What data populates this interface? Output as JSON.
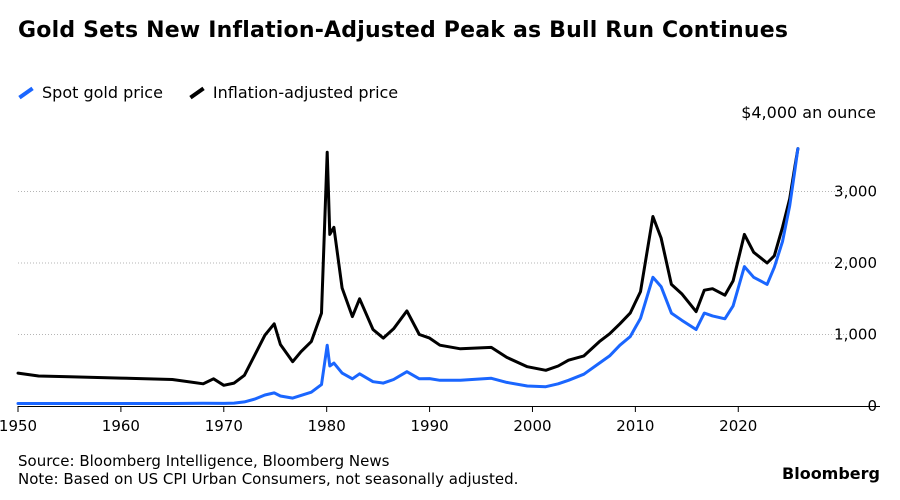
{
  "title": "Gold Sets New Inflation-Adjusted Peak as Bull Run Continues",
  "legend": [
    {
      "label": "Spot gold price",
      "color": "#1a66ff"
    },
    {
      "label": "Inflation-adjusted price",
      "color": "#000000"
    }
  ],
  "unit_label": "$4,000 an ounce",
  "source": "Source: Bloomberg Intelligence, Bloomberg News",
  "note": "Note: Based on US CPI Urban Consumers, not seasonally adjusted.",
  "brand": "Bloomberg",
  "chart_data": {
    "type": "line",
    "title": "Gold Sets New Inflation-Adjusted Peak as Bull Run Continues",
    "xlabel": "",
    "ylabel": "$ an ounce",
    "xlim": [
      1950,
      2026
    ],
    "ylim": [
      0,
      4000
    ],
    "xticks": [
      1950,
      1960,
      1970,
      1980,
      1990,
      2000,
      2010,
      2020
    ],
    "xtick_labels": [
      "1950",
      "1960",
      "1970",
      "1980",
      "1990",
      "2000",
      "2010",
      "2020"
    ],
    "yticks": [
      0,
      1000,
      2000,
      3000
    ],
    "ytick_labels": [
      "0",
      "1,000",
      "2,000",
      "3,000"
    ],
    "grid": "horizontal",
    "legend_position": "top-left",
    "series": [
      {
        "name": "Spot gold price",
        "color": "#1a66ff",
        "x": [
          1950,
          1955,
          1960,
          1965,
          1968,
          1970,
          1971,
          1972,
          1973,
          1974,
          1974.9,
          1975.5,
          1976.7,
          1977.5,
          1978.5,
          1979.5,
          1980.05,
          1980.3,
          1980.7,
          1981.5,
          1982.5,
          1983.2,
          1984.5,
          1985.5,
          1986.5,
          1987.8,
          1989,
          1990,
          1991,
          1993,
          1996,
          1997.5,
          1999.5,
          2001.3,
          2002.5,
          2003.5,
          2005,
          2006.5,
          2007.5,
          2008.5,
          2009.5,
          2010.5,
          2011.7,
          2012.5,
          2013.5,
          2014.5,
          2015.9,
          2016.7,
          2017.5,
          2018.7,
          2019.5,
          2020.6,
          2021.5,
          2022.8,
          2023.5,
          2024.3,
          2025.0,
          2025.5,
          2025.8
        ],
        "y": [
          35,
          35,
          35,
          35,
          39,
          36,
          41,
          58,
          97,
          154,
          183,
          140,
          110,
          148,
          193,
          300,
          850,
          560,
          600,
          460,
          380,
          450,
          340,
          320,
          370,
          480,
          380,
          383,
          360,
          360,
          387,
          330,
          280,
          270,
          310,
          360,
          445,
          600,
          700,
          850,
          970,
          1225,
          1800,
          1670,
          1300,
          1200,
          1070,
          1300,
          1260,
          1220,
          1400,
          1950,
          1800,
          1700,
          1940,
          2300,
          2800,
          3300,
          3600
        ]
      },
      {
        "name": "Inflation-adjusted price",
        "color": "#000000",
        "x": [
          1950,
          1952,
          1955,
          1960,
          1965,
          1968,
          1969,
          1970,
          1971,
          1972,
          1973,
          1974,
          1974.9,
          1975.5,
          1976.7,
          1977.5,
          1978.5,
          1979.5,
          1980.05,
          1980.3,
          1980.7,
          1981.5,
          1982.5,
          1983.2,
          1984.5,
          1985.5,
          1986.5,
          1987.8,
          1989,
          1990,
          1991,
          1993,
          1996,
          1997.5,
          1999.5,
          2001.3,
          2002.5,
          2003.5,
          2005,
          2006.5,
          2007.5,
          2008.5,
          2009.5,
          2010.5,
          2011.7,
          2012.5,
          2013.5,
          2014.5,
          2015.9,
          2016.7,
          2017.5,
          2018.7,
          2019.5,
          2020.6,
          2021.5,
          2022.8,
          2023.5,
          2024.3,
          2025.0,
          2025.5,
          2025.8
        ],
        "y": [
          460,
          420,
          410,
          390,
          370,
          310,
          380,
          290,
          320,
          430,
          710,
          990,
          1150,
          860,
          620,
          760,
          900,
          1300,
          3550,
          2400,
          2500,
          1650,
          1250,
          1500,
          1070,
          950,
          1080,
          1330,
          1000,
          950,
          850,
          800,
          820,
          680,
          550,
          500,
          560,
          640,
          700,
          900,
          1010,
          1150,
          1300,
          1600,
          2650,
          2350,
          1700,
          1570,
          1320,
          1620,
          1640,
          1550,
          1750,
          2400,
          2150,
          2000,
          2100,
          2500,
          2900,
          3350,
          3600
        ]
      }
    ]
  }
}
